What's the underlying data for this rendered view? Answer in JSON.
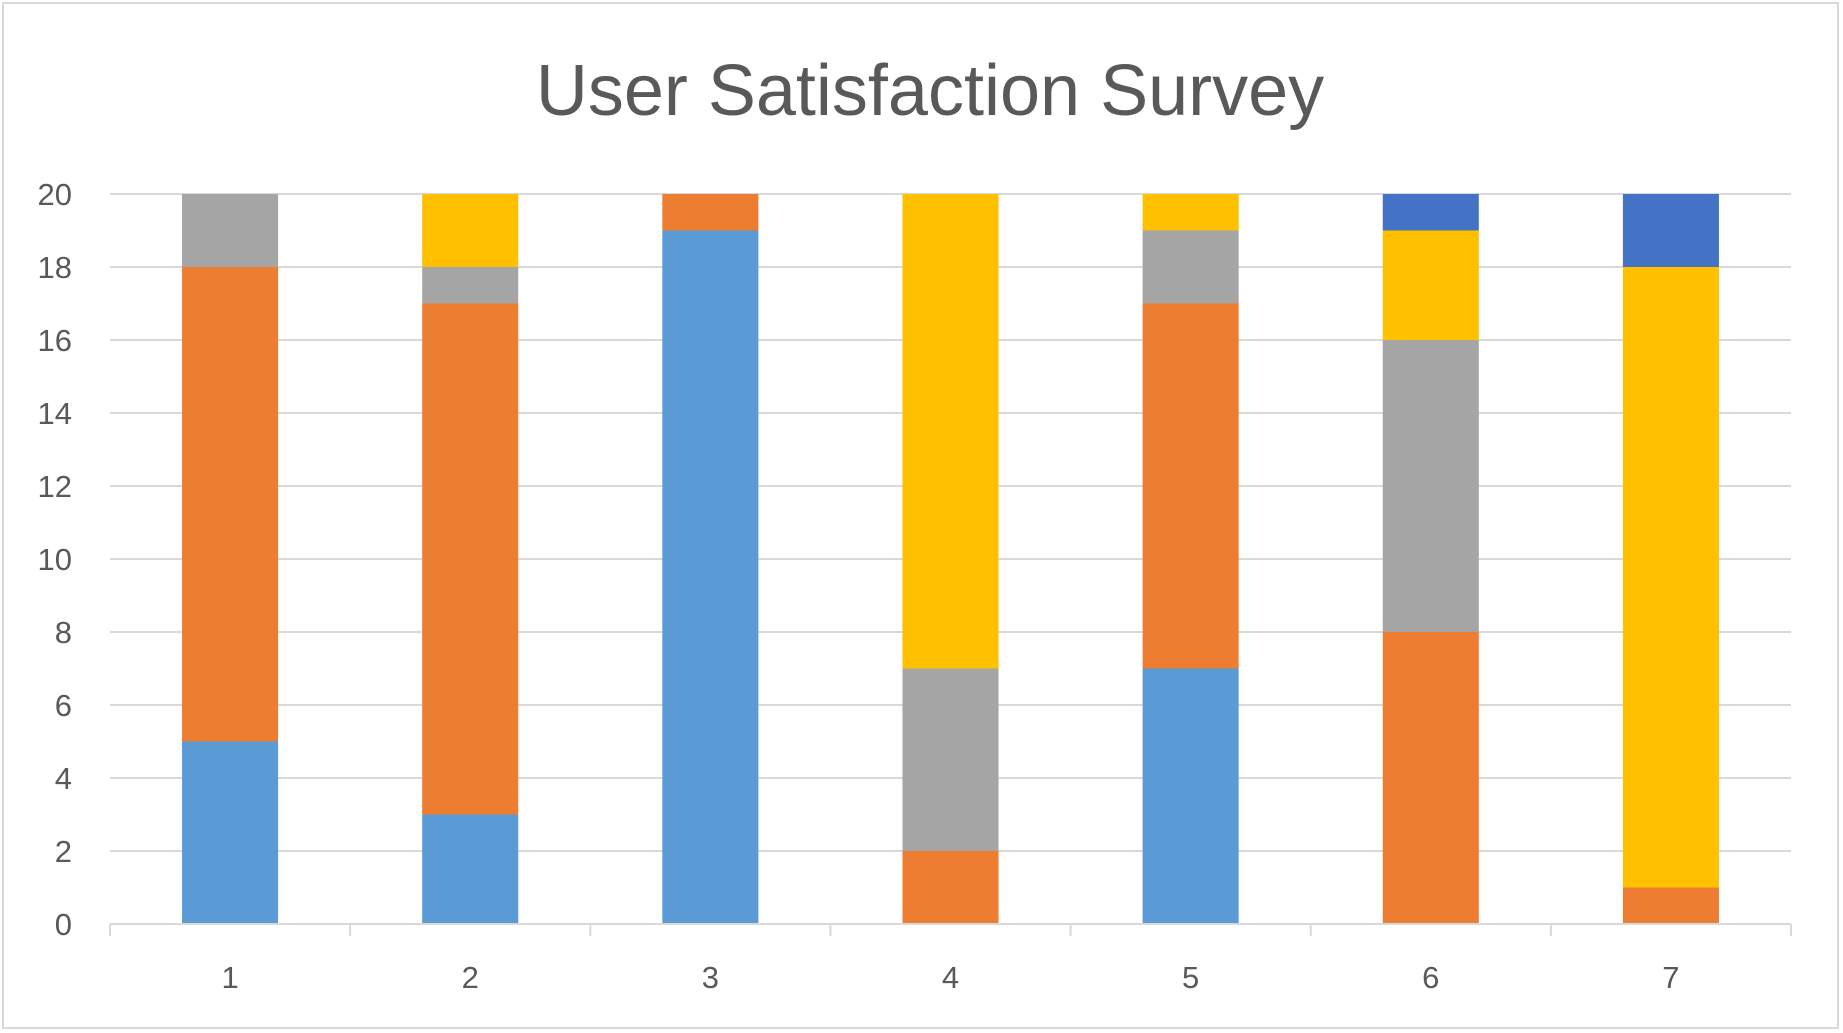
{
  "chart_data": {
    "type": "bar",
    "stacked": true,
    "title": "User Satisfaction Survey",
    "xlabel": "",
    "ylabel": "",
    "categories": [
      "1",
      "2",
      "3",
      "4",
      "5",
      "6",
      "7"
    ],
    "ylim": [
      0,
      20
    ],
    "yticks": [
      "0",
      "2",
      "4",
      "6",
      "8",
      "10",
      "12",
      "14",
      "16",
      "18",
      "20"
    ],
    "grid": true,
    "legend": "none",
    "series": [
      {
        "color": "#5b9bd5",
        "values": [
          5,
          3,
          19,
          0,
          7,
          0,
          0
        ]
      },
      {
        "color": "#ed7d31",
        "values": [
          13,
          14,
          1,
          2,
          10,
          8,
          1
        ]
      },
      {
        "color": "#a5a5a5",
        "values": [
          2,
          1,
          0,
          5,
          2,
          8,
          0
        ]
      },
      {
        "color": "#ffc000",
        "values": [
          0,
          2,
          0,
          13,
          1,
          3,
          17
        ]
      },
      {
        "color": "#4472c4",
        "values": [
          0,
          0,
          0,
          0,
          0,
          1,
          2
        ]
      }
    ]
  }
}
